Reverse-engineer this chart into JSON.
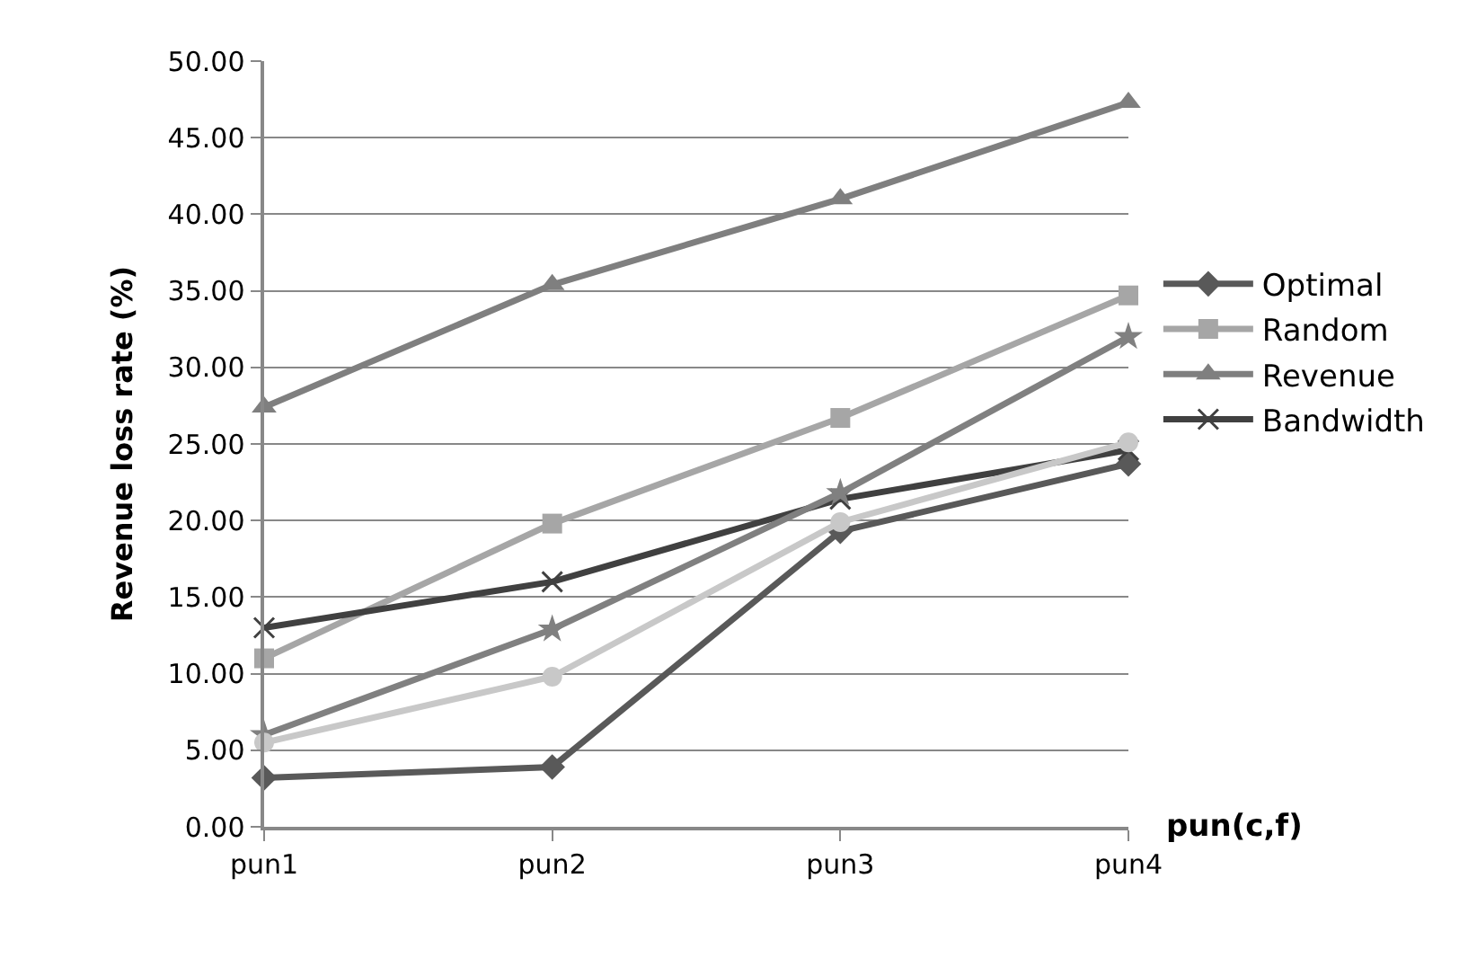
{
  "chart_data": {
    "type": "line",
    "xlabel": "pun(c,f)",
    "ylabel": "Revenue loss rate (%)",
    "categories": [
      "pun1",
      "pun2",
      "pun3",
      "pun4"
    ],
    "series": [
      {
        "name": "Optimal",
        "color": "#595959",
        "marker": "diamond",
        "values": [
          3.2,
          3.9,
          19.3,
          23.7
        ]
      },
      {
        "name": "Random",
        "color": "#a6a6a6",
        "marker": "square",
        "values": [
          11.0,
          19.8,
          26.7,
          34.7
        ]
      },
      {
        "name": "Revenue",
        "color": "#7f7f7f",
        "marker": "triangle",
        "values": [
          27.4,
          35.4,
          41.0,
          47.3
        ]
      },
      {
        "name": "Bandwidth",
        "color": "#404040",
        "marker": "cross",
        "values": [
          13.0,
          16.0,
          21.4,
          24.6
        ]
      },
      {
        "color": "#808080",
        "marker": "star",
        "values": [
          6.0,
          12.9,
          21.8,
          32.0
        ]
      },
      {
        "color": "#c8c8c8",
        "marker": "circle",
        "values": [
          5.5,
          9.8,
          19.9,
          25.1
        ]
      }
    ],
    "ylim": [
      0,
      50
    ],
    "yticks": [
      {
        "value": 0,
        "label": "0.00"
      },
      {
        "value": 5,
        "label": "5.00"
      },
      {
        "value": 10,
        "label": "10.00"
      },
      {
        "value": 15,
        "label": "15.00"
      },
      {
        "value": 20,
        "label": "20.00"
      },
      {
        "value": 25,
        "label": "25.00"
      },
      {
        "value": 30,
        "label": "30.00"
      },
      {
        "value": 35,
        "label": "35.00"
      },
      {
        "value": 40,
        "label": "40.00"
      },
      {
        "value": 45,
        "label": "45.00"
      },
      {
        "value": 50,
        "label": "50.00"
      }
    ],
    "grid": "y",
    "legend": "right"
  }
}
